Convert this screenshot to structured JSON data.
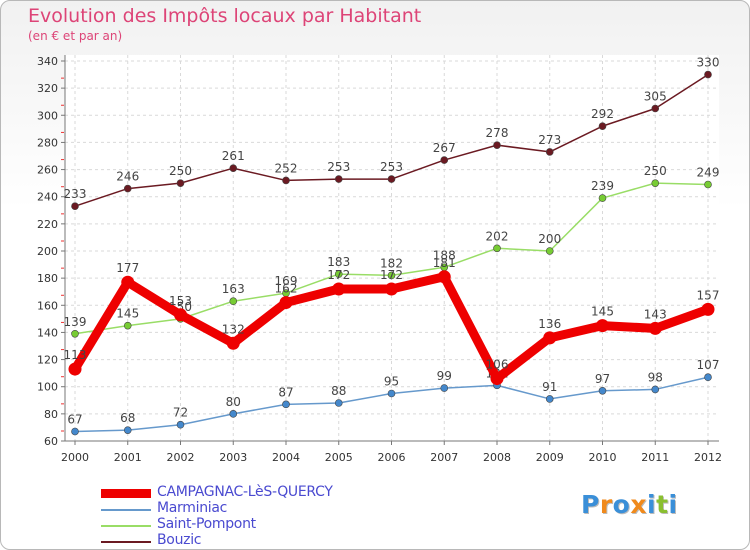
{
  "title": "Evolution des Impôts locaux par Habitant",
  "subtitle": "(en € et par an)",
  "brand": {
    "text": "Proxiti",
    "letter_colors": [
      "#3a8fd8",
      "#f08a1c",
      "#3a8fd8",
      "#f08a1c",
      "#3a8fd8",
      "#8abf30",
      "#3a8fd8"
    ]
  },
  "chart_data": {
    "type": "line",
    "x": [
      2000,
      2001,
      2002,
      2003,
      2004,
      2005,
      2006,
      2007,
      2008,
      2009,
      2010,
      2011,
      2012
    ],
    "xlabel": "",
    "ylabel": "",
    "ylim": [
      60,
      340
    ],
    "yticks": [
      60,
      80,
      100,
      120,
      140,
      160,
      180,
      200,
      220,
      240,
      260,
      280,
      300,
      320,
      340
    ],
    "grid": true,
    "legend_position": "bottom-left",
    "series": [
      {
        "name": "Bouzic",
        "color": "#6b1a22",
        "marker_color": "#6b1a22",
        "width": "thin",
        "values": [
          233,
          246,
          250,
          261,
          252,
          253,
          253,
          267,
          278,
          273,
          292,
          305,
          330
        ]
      },
      {
        "name": "Saint-Pompont",
        "color": "#99dd66",
        "marker_color": "#77cc33",
        "width": "thin",
        "values": [
          139,
          145,
          150,
          163,
          169,
          183,
          182,
          188,
          202,
          200,
          239,
          250,
          249
        ]
      },
      {
        "name": "Marminiac",
        "color": "#6699cc",
        "marker_color": "#4488cc",
        "width": "thin",
        "values": [
          67,
          68,
          72,
          80,
          87,
          88,
          95,
          99,
          101,
          91,
          97,
          98,
          107
        ]
      },
      {
        "name": "CAMPAGNAC-LèS-QUERCY",
        "color": "#ee0000",
        "marker_color": "#ee0000",
        "width": "thick",
        "values": [
          113,
          177,
          153,
          132,
          162,
          172,
          172,
          181,
          106,
          136,
          145,
          143,
          157
        ]
      }
    ],
    "legend_order": [
      "CAMPAGNAC-LèS-QUERCY",
      "Marminiac",
      "Saint-Pompont",
      "Bouzic"
    ]
  }
}
